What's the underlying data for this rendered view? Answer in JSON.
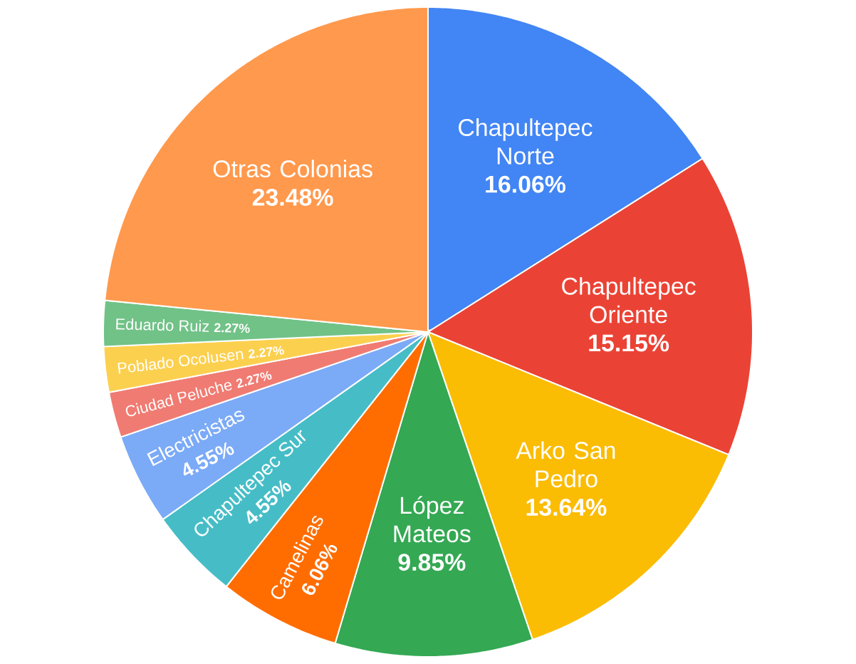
{
  "chart_data": {
    "type": "pie",
    "categories": [
      "Chapultepec Norte",
      "Chapultepec Oriente",
      "Arko San Pedro",
      "López Mateos",
      "Camelinas",
      "Chapultepec Sur",
      "Electricistas",
      "Ciudad Peluche",
      "Poblado Ocolusen",
      "Eduardo Ruiz",
      "Otras Colonias"
    ],
    "values": [
      16.06,
      15.15,
      13.64,
      9.85,
      6.06,
      4.55,
      4.55,
      2.27,
      2.27,
      2.27,
      23.48
    ],
    "value_labels": [
      "16.06%",
      "15.15%",
      "13.64%",
      "9.85%",
      "6.06%",
      "4.55%",
      "4.55%",
      "2.27%",
      "2.27%",
      "2.27%",
      "23.48%"
    ],
    "colors": [
      "#4285f4",
      "#ea4335",
      "#fbbc04",
      "#34a853",
      "#ff6d01",
      "#46bdc6",
      "#7baaf7",
      "#f07b72",
      "#fcd04f",
      "#71c287",
      "#ff994d"
    ]
  }
}
